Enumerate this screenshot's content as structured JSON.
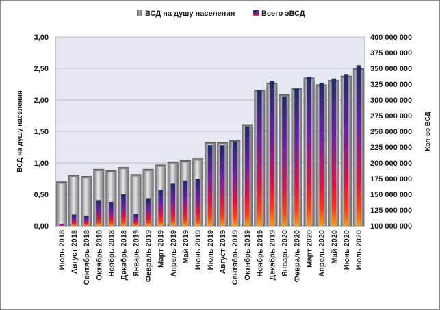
{
  "chart_data": {
    "type": "bar",
    "categories": [
      "Июль 2018",
      "Август 2018",
      "Сентябрь 2018",
      "Октябрь 2018",
      "Ноябрь 2018",
      "Декабрь 2018",
      "Январь 2019",
      "Февраль 2019",
      "Март 2019",
      "Апрель 2019",
      "Май 2019",
      "Июнь 2019",
      "Июль 2019",
      "Август 2019",
      "Сентябрь 2019",
      "Октябрь 2019",
      "Ноябрь 2019",
      "Декабрь 2019",
      "Январь 2020",
      "Февраль 2020",
      "Март 2020",
      "Апрель 2020",
      "Май 2020",
      "Июнь 2020",
      "Июль 2020"
    ],
    "series": [
      {
        "name": "ВСД на душу населения",
        "axis": "left",
        "color": "#9a9a9a",
        "values": [
          0.7,
          0.81,
          0.79,
          0.9,
          0.88,
          0.93,
          0.82,
          0.9,
          0.97,
          1.02,
          1.04,
          1.07,
          1.33,
          1.33,
          1.36,
          1.61,
          2.16,
          2.27,
          2.09,
          2.18,
          2.35,
          2.24,
          2.31,
          2.38,
          2.5
        ]
      },
      {
        "name": "Всего эВСД",
        "axis": "right",
        "color": "#1f2d6e",
        "values": [
          103000000,
          118000000,
          116000000,
          141000000,
          138000000,
          150000000,
          119000000,
          143000000,
          157000000,
          167000000,
          172000000,
          175000000,
          228000000,
          228000000,
          234000000,
          258000000,
          315000000,
          330000000,
          305000000,
          318000000,
          337000000,
          327000000,
          334000000,
          341000000,
          355000000
        ]
      }
    ],
    "ylabel": "ВСД на душу населения",
    "y2label": "Кол-во ВСД",
    "ylim": [
      0,
      3
    ],
    "y2lim": [
      100000000,
      400000000
    ],
    "yticks": [
      "0,00",
      "0,50",
      "1,00",
      "1,50",
      "2,00",
      "2,50",
      "3,00"
    ],
    "y2ticks": [
      "100 000 000",
      "125 000 000",
      "150 000 000",
      "175 000 000",
      "200 000 000",
      "225 000 000",
      "250 000 000",
      "275 000 000",
      "300 000 000",
      "325 000 000",
      "350 000 000",
      "375 000 000",
      "400 000 000"
    ],
    "grid": true,
    "legend": "top",
    "plot_background": "#e6e9f2"
  }
}
